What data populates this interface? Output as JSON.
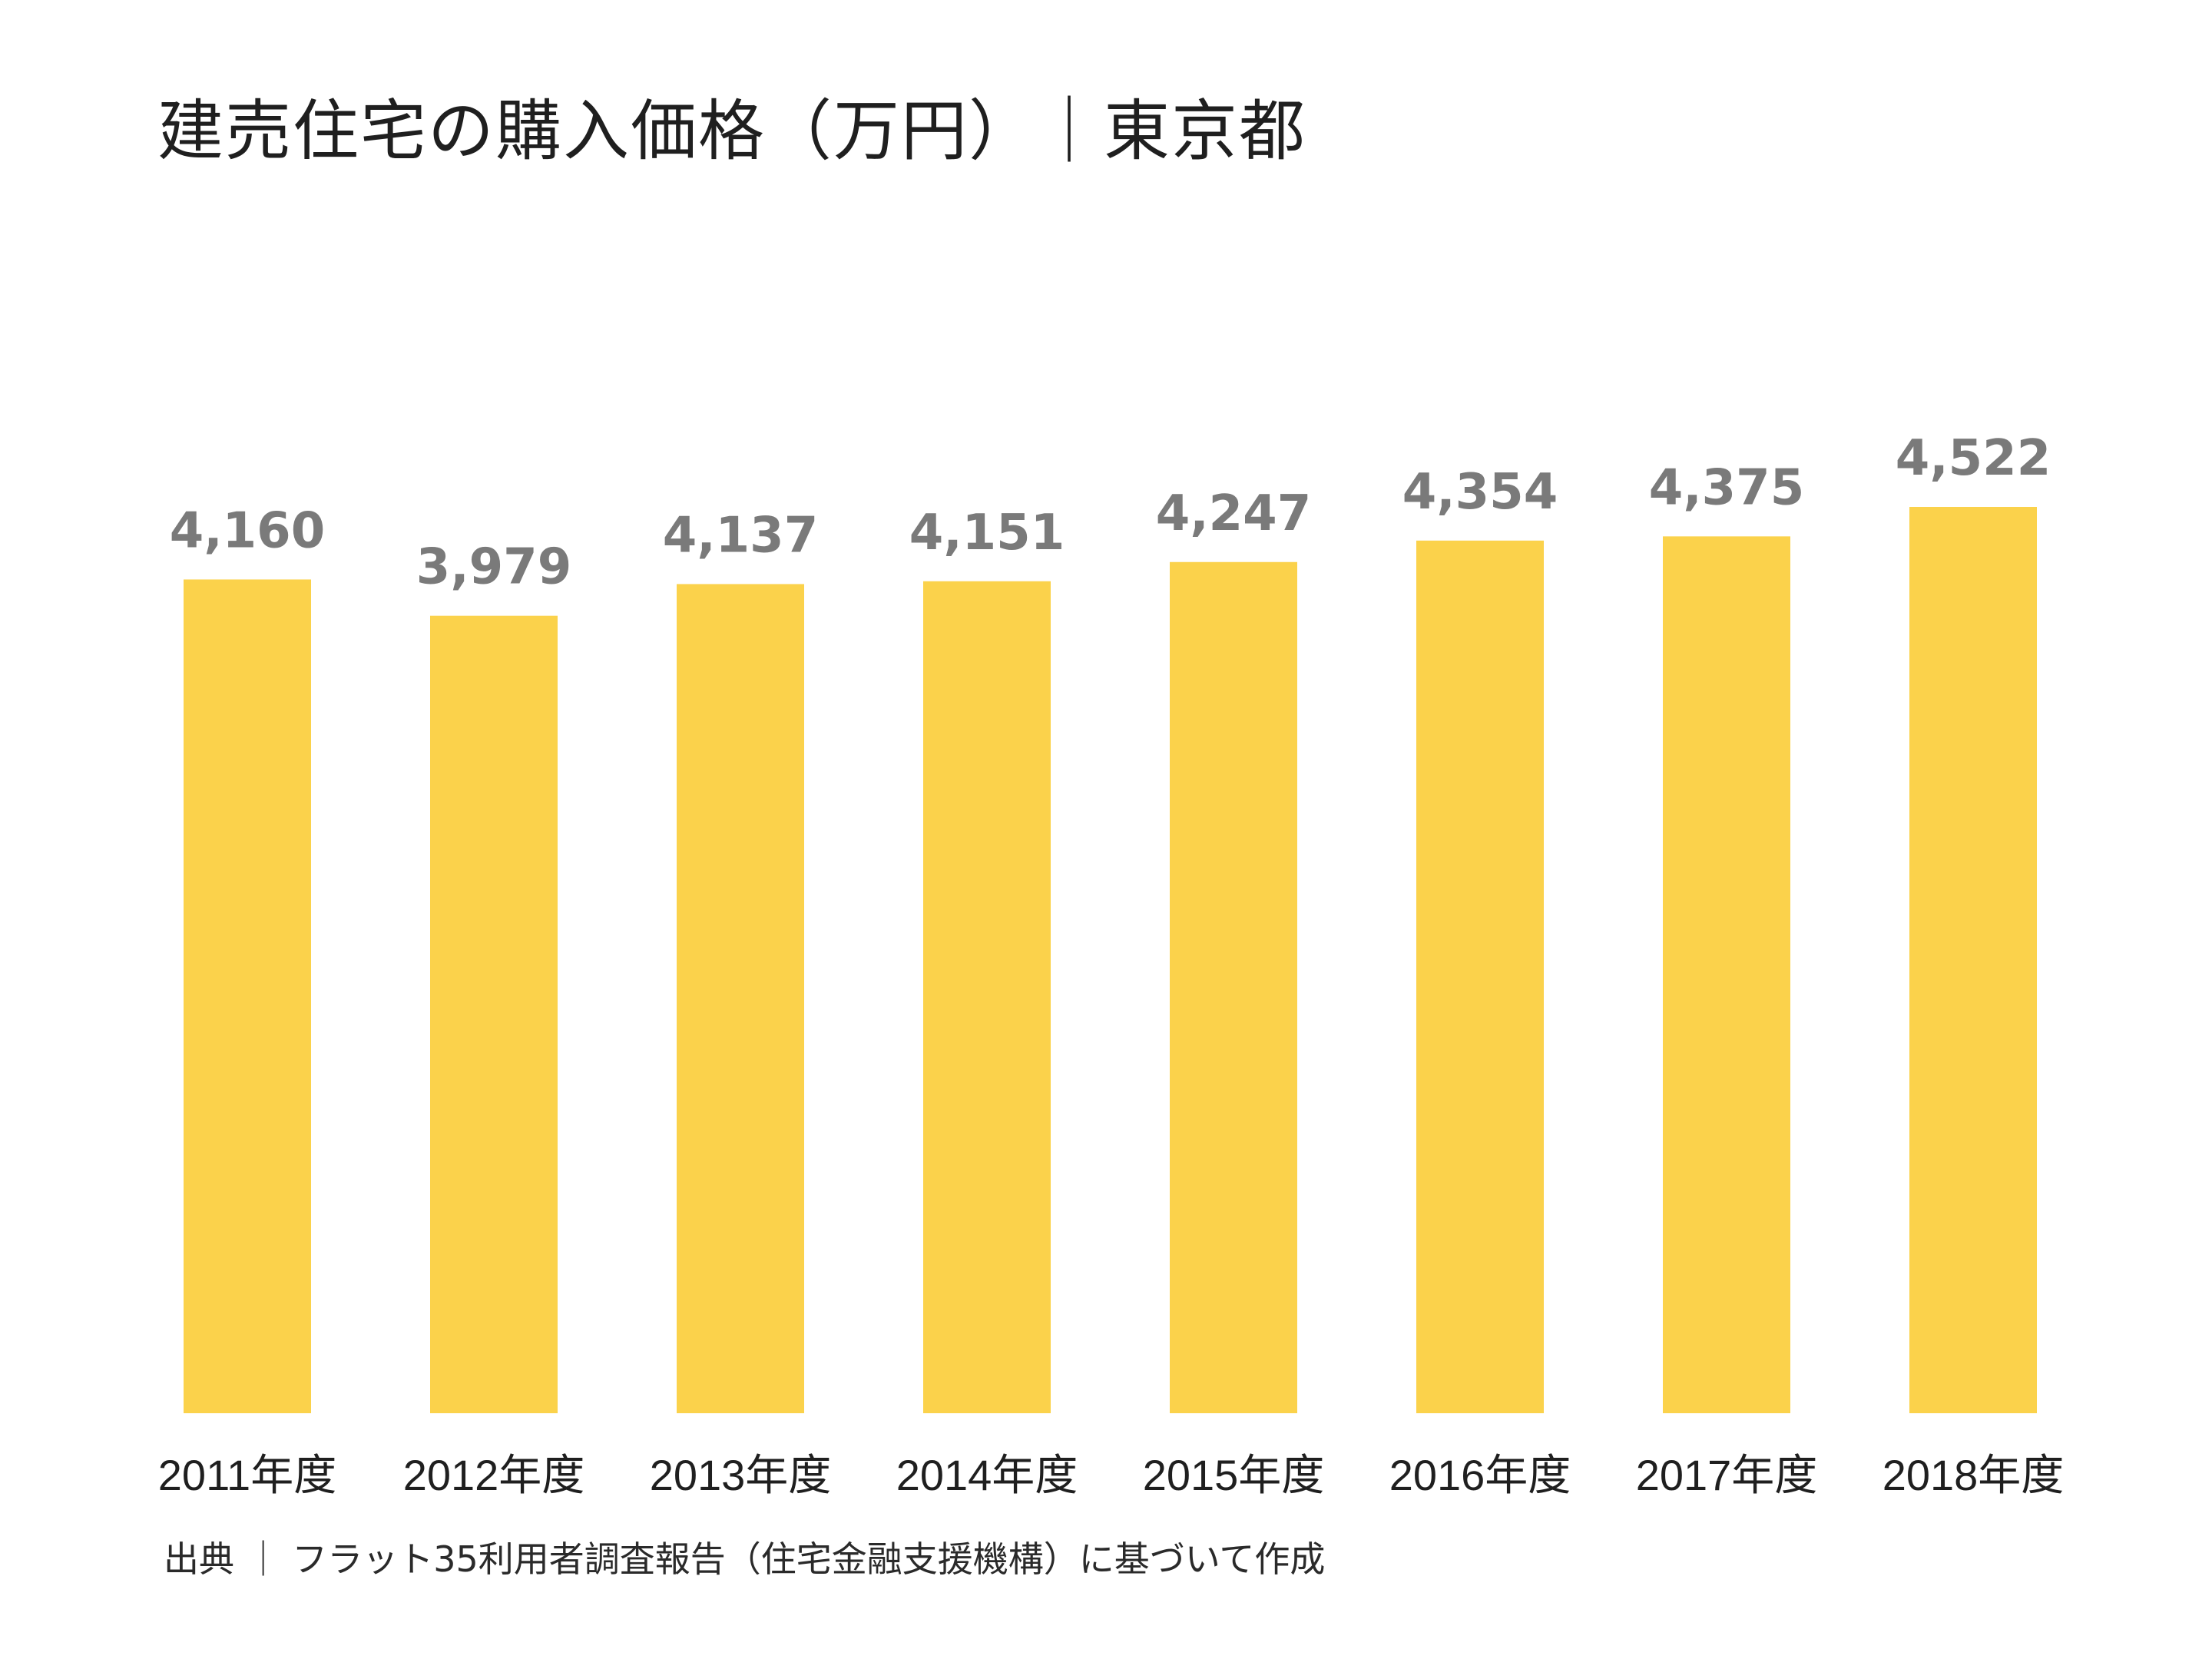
{
  "chart_data": {
    "type": "bar",
    "title": "建売住宅の購入価格（万円）｜東京都",
    "categories": [
      "2011年度",
      "2012年度",
      "2013年度",
      "2014年度",
      "2015年度",
      "2016年度",
      "2017年度",
      "2018年度"
    ],
    "values": [
      4160,
      3979,
      4137,
      4151,
      4247,
      4354,
      4375,
      4522
    ],
    "value_labels": [
      "4,160",
      "3,979",
      "4,137",
      "4,151",
      "4,247",
      "4,354",
      "4,375",
      "4,522"
    ],
    "xlabel": "",
    "ylabel": "",
    "ylim": [
      0,
      4522
    ],
    "grid": false,
    "legend": "none",
    "bar_color": "#FBD24B",
    "value_label_color": "#7A7A7A",
    "source": "出典 ｜ フラット35利用者調査報告（住宅金融支援機構）に基づいて作成"
  }
}
